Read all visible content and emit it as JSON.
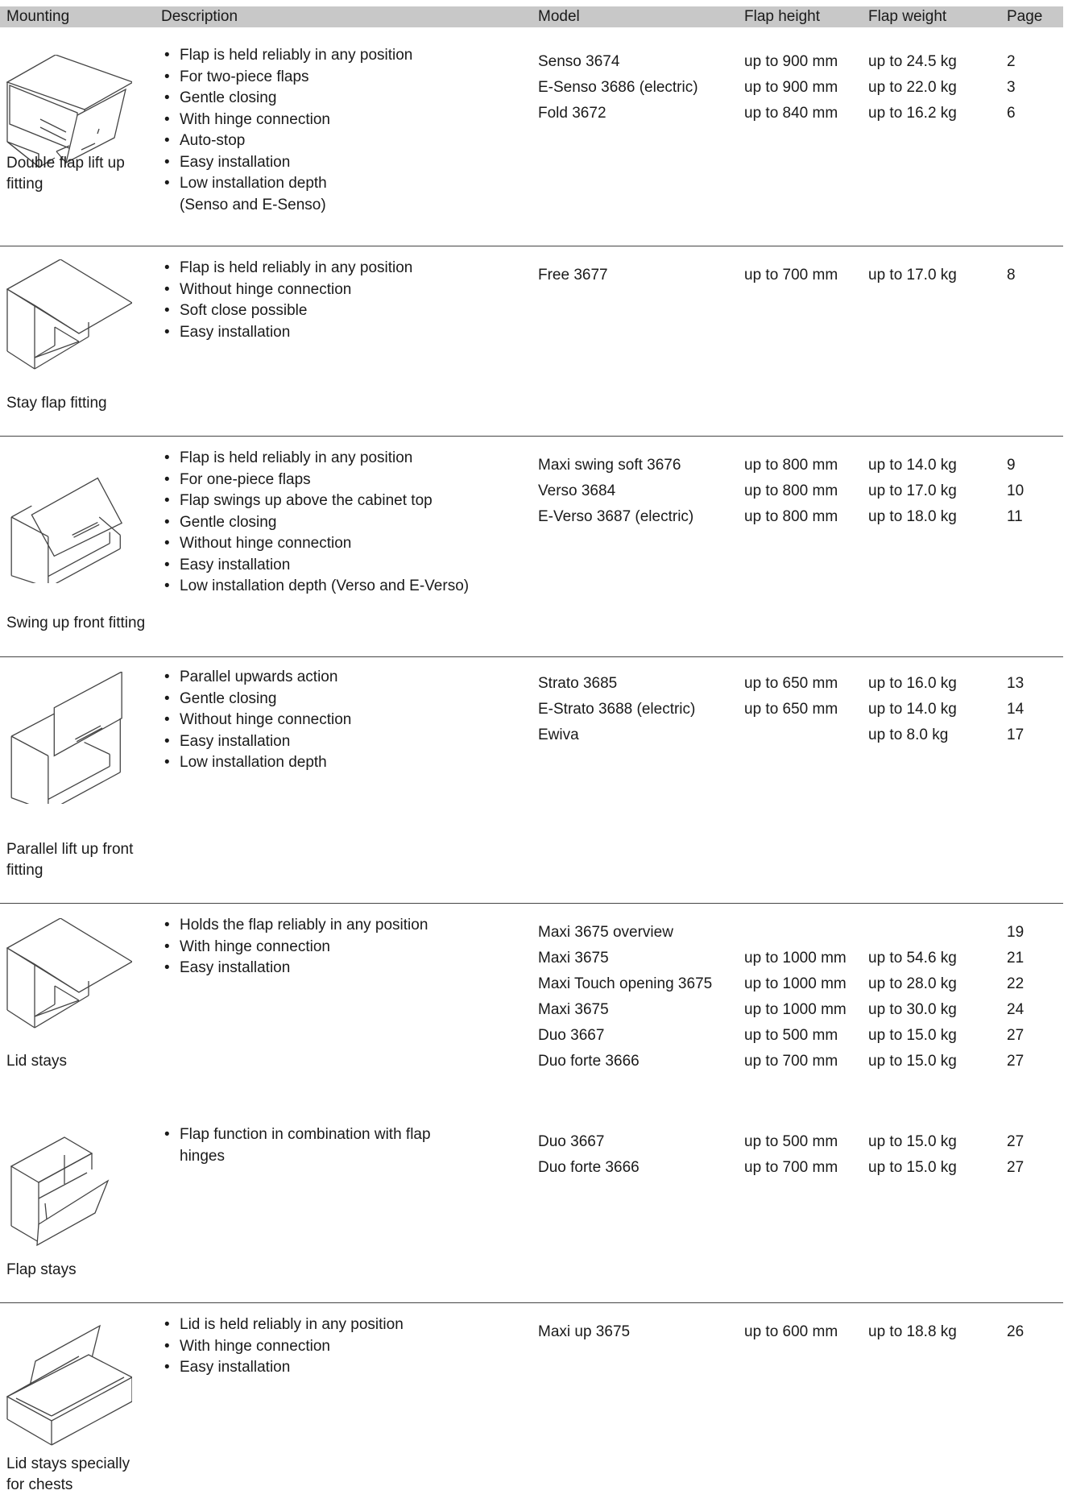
{
  "header": {
    "mounting": "Mounting",
    "description": "Description",
    "model": "Model",
    "flap_height": "Flap height",
    "flap_weight": "Flap weight",
    "page": "Page"
  },
  "sections": [
    {
      "image_icon": "double-flap-illustration",
      "name": "Double flap lift up fitting",
      "features": [
        "Flap is held reliably in any position",
        "For two-piece flaps",
        "Gentle closing",
        "With hinge connection",
        "Auto-stop",
        "Easy installation",
        "Low installation depth (Senso and E-Senso)"
      ],
      "models": [
        {
          "model": "Senso 3674",
          "height": "up to 900 mm",
          "weight": "up to 24.5 kg",
          "page": "2"
        },
        {
          "model": "E-Senso 3686 (electric)",
          "height": "up to 900 mm",
          "weight": "up to 22.0 kg",
          "page": "3"
        },
        {
          "model": "Fold 3672",
          "height": "up to 840 mm",
          "weight": "up to 16.2 kg",
          "page": "6"
        }
      ]
    },
    {
      "image_icon": "stay-flap-illustration",
      "name": "Stay flap fitting",
      "features": [
        "Flap is held reliably in any position",
        "Without hinge connection",
        "Soft close possible",
        "Easy installation"
      ],
      "models": [
        {
          "model": "Free 3677",
          "height": "up to 700 mm",
          "weight": "up to 17.0 kg",
          "page": "8"
        }
      ]
    },
    {
      "image_icon": "swing-up-illustration",
      "name": "Swing up front fitting",
      "features": [
        "Flap is held reliably in any position",
        "For one-piece flaps",
        "Flap swings up above the cabinet top",
        "Gentle closing",
        "Without hinge connection",
        "Easy installation",
        "Low installation depth (Verso and E-Verso)"
      ],
      "models": [
        {
          "model": "Maxi swing soft 3676",
          "height": "up to 800 mm",
          "weight": "up to 14.0 kg",
          "page": "9"
        },
        {
          "model": "Verso 3684",
          "height": "up to 800 mm",
          "weight": "up to 17.0 kg",
          "page": "10"
        },
        {
          "model": "E-Verso 3687 (electric)",
          "height": "up to 800 mm",
          "weight": "up to 18.0 kg",
          "page": "11"
        }
      ]
    },
    {
      "image_icon": "parallel-lift-illustration",
      "name": "Parallel lift up front fitting",
      "features": [
        "Parallel upwards action",
        "Gentle closing",
        "Without hinge connection",
        "Easy installation",
        "Low installation depth"
      ],
      "models": [
        {
          "model": "Strato 3685",
          "height": "up to 650 mm",
          "weight": "up to 16.0 kg",
          "page": "13"
        },
        {
          "model": "E-Strato 3688 (electric)",
          "height": "up to 650 mm",
          "weight": "up to 14.0 kg",
          "page": "14"
        },
        {
          "model": "Ewiva",
          "height": "",
          "weight": "up to 8.0 kg",
          "page": "17"
        }
      ]
    },
    {
      "image_icon": "lid-stay-illustration",
      "name": "Lid stays",
      "features": [
        "Holds the flap reliably in any position",
        "With hinge connection",
        "Easy installation"
      ],
      "models": [
        {
          "model": "Maxi 3675 overview",
          "height": "",
          "weight": "",
          "page": "19"
        },
        {
          "model": "Maxi 3675",
          "height": "up to 1000 mm",
          "weight": "up to 54.6 kg",
          "page": "21"
        },
        {
          "model": "Maxi Touch opening 3675",
          "height": "up to 1000 mm",
          "weight": "up to 28.0 kg",
          "page": "22"
        },
        {
          "model": "Maxi 3675",
          "height": "up to 1000 mm",
          "weight": "up to 30.0 kg",
          "page": "24"
        },
        {
          "model": "Duo 3667",
          "height": "up to 500 mm",
          "weight": "up to 15.0 kg",
          "page": "27"
        },
        {
          "model": "Duo forte 3666",
          "height": "up to 700 mm",
          "weight": "up to 15.0 kg",
          "page": "27"
        }
      ]
    },
    {
      "image_icon": "flap-stay-illustration",
      "name": "Flap stays",
      "features": [
        "Flap function in combination with flap hinges"
      ],
      "models": [
        {
          "model": "Duo 3667",
          "height": "up to 500 mm",
          "weight": "up to 15.0 kg",
          "page": "27"
        },
        {
          "model": "Duo forte 3666",
          "height": "up to 700 mm",
          "weight": "up to 15.0 kg",
          "page": "27"
        }
      ]
    },
    {
      "image_icon": "chest-lid-illustration",
      "name": "Lid stays specially for chests",
      "features": [
        "Lid is held reliably in any position",
        "With hinge connection",
        "Easy installation"
      ],
      "models": [
        {
          "model": "Maxi up 3675",
          "height": "up to 600 mm",
          "weight": "up to 18.8 kg",
          "page": "26"
        }
      ]
    }
  ]
}
